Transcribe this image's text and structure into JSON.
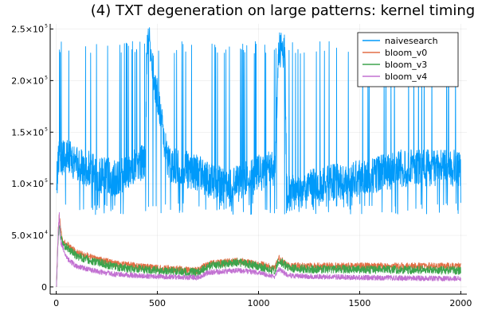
{
  "chart_data": {
    "type": "line",
    "title": "(4) TXT degeneration on large patterns: kernel timing",
    "xlabel": "",
    "ylabel": "",
    "xlim": [
      -30,
      2030
    ],
    "ylim": [
      -7000,
      255000
    ],
    "x_ticks": [
      0,
      500,
      1000,
      1500,
      2000
    ],
    "x_tick_labels": [
      "0",
      "500",
      "1000",
      "1500",
      "2000"
    ],
    "y_ticks": [
      0,
      50000,
      100000,
      150000,
      200000,
      250000
    ],
    "y_tick_labels": [
      {
        "mantissa": "0",
        "exp": ""
      },
      {
        "mantissa": "5.0×10",
        "exp": "4"
      },
      {
        "mantissa": "1.0×10",
        "exp": "5"
      },
      {
        "mantissa": "1.5×10",
        "exp": "5"
      },
      {
        "mantissa": "2.0×10",
        "exp": "5"
      },
      {
        "mantissa": "2.5×10",
        "exp": "5"
      }
    ],
    "grid": true,
    "legend_position": "top-right",
    "n_points": 2000,
    "series": [
      {
        "name": "naivesearch",
        "color": "#009AFA",
        "profile": [
          [
            1,
            95000
          ],
          [
            10,
            125000
          ],
          [
            50,
            125000
          ],
          [
            100,
            120000
          ],
          [
            200,
            110000
          ],
          [
            300,
            105000
          ],
          [
            400,
            120000
          ],
          [
            440,
            120000
          ],
          [
            450,
            230000
          ],
          [
            460,
            235000
          ],
          [
            550,
            120000
          ],
          [
            700,
            110000
          ],
          [
            850,
            95000
          ],
          [
            1000,
            110000
          ],
          [
            1080,
            115000
          ],
          [
            1100,
            230000
          ],
          [
            1130,
            230000
          ],
          [
            1140,
            90000
          ],
          [
            1300,
            100000
          ],
          [
            1500,
            105000
          ],
          [
            1700,
            115000
          ],
          [
            2000,
            115000
          ]
        ],
        "noise": 18000,
        "spike_to": 238000,
        "spike_prob": 0.05,
        "dip_to": 70000,
        "dip_prob": 0.04
      },
      {
        "name": "bloom_v0",
        "color": "#E26F46",
        "profile": [
          [
            1,
            0
          ],
          [
            10,
            55000
          ],
          [
            15,
            70000
          ],
          [
            30,
            45000
          ],
          [
            100,
            33000
          ],
          [
            200,
            27000
          ],
          [
            300,
            22000
          ],
          [
            500,
            18000
          ],
          [
            700,
            16000
          ],
          [
            750,
            22000
          ],
          [
            900,
            25000
          ],
          [
            1000,
            22000
          ],
          [
            1080,
            18000
          ],
          [
            1100,
            28000
          ],
          [
            1150,
            20000
          ],
          [
            1300,
            20000
          ],
          [
            1500,
            20000
          ],
          [
            2000,
            20000
          ]
        ],
        "noise": 3500
      },
      {
        "name": "bloom_v3",
        "color": "#3DA44D",
        "profile": [
          [
            1,
            0
          ],
          [
            10,
            50000
          ],
          [
            15,
            60000
          ],
          [
            30,
            42000
          ],
          [
            100,
            30000
          ],
          [
            200,
            24000
          ],
          [
            300,
            19000
          ],
          [
            500,
            16000
          ],
          [
            700,
            14000
          ],
          [
            750,
            20000
          ],
          [
            900,
            24000
          ],
          [
            1000,
            20000
          ],
          [
            1080,
            16000
          ],
          [
            1100,
            26000
          ],
          [
            1150,
            18000
          ],
          [
            1300,
            17000
          ],
          [
            1500,
            17000
          ],
          [
            2000,
            16000
          ]
        ],
        "noise": 4000
      },
      {
        "name": "bloom_v4",
        "color": "#C271D2",
        "profile": [
          [
            1,
            0
          ],
          [
            10,
            55000
          ],
          [
            15,
            70000
          ],
          [
            20,
            45000
          ],
          [
            50,
            28000
          ],
          [
            100,
            20000
          ],
          [
            200,
            15000
          ],
          [
            300,
            12000
          ],
          [
            500,
            10000
          ],
          [
            700,
            9000
          ],
          [
            750,
            14000
          ],
          [
            900,
            16000
          ],
          [
            1000,
            14000
          ],
          [
            1080,
            10000
          ],
          [
            1100,
            17000
          ],
          [
            1150,
            11000
          ],
          [
            1300,
            10000
          ],
          [
            1500,
            9000
          ],
          [
            2000,
            8000
          ]
        ],
        "noise": 2500
      }
    ]
  }
}
